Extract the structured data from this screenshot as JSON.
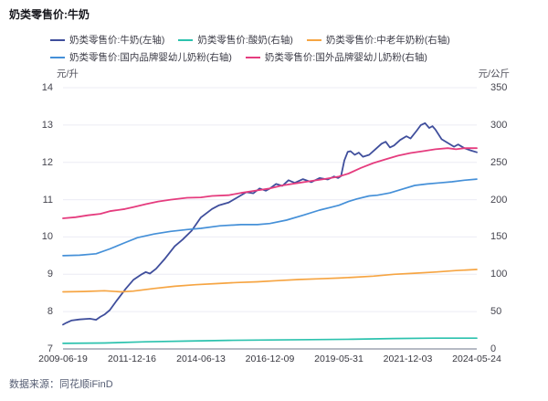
{
  "page": {
    "title": "奶类零售价:牛奶",
    "source_note": "数据来源：同花顺iFinD"
  },
  "chart_data": {
    "type": "line",
    "title": "奶类零售价:牛奶",
    "legend_position": "top",
    "grid": true,
    "x_range_note": "weekly series from 2009-06-19 to 2024-05-24, point x = normalized 0-1 position",
    "x_tick_labels": [
      "2009-06-19",
      "2011-12-16",
      "2014-06-13",
      "2016-12-09",
      "2019-05-31",
      "2021-12-03",
      "2024-05-24"
    ],
    "left_axis": {
      "unit": "元/升",
      "min": 7,
      "max": 14,
      "ticks": [
        14,
        13,
        12,
        11,
        10,
        9,
        8,
        7
      ]
    },
    "right_axis": {
      "unit": "元/公斤",
      "min": 0,
      "max": 350,
      "ticks": [
        350,
        300,
        250,
        200,
        150,
        100,
        50,
        0
      ]
    },
    "series": [
      {
        "name": "奶类零售价:牛奶(左轴)",
        "axis": "left",
        "color": "#3f4e9c",
        "width": 1.8,
        "points": [
          [
            0,
            7.65
          ],
          [
            0.008,
            7.7
          ],
          [
            0.02,
            7.76
          ],
          [
            0.04,
            7.79
          ],
          [
            0.065,
            7.81
          ],
          [
            0.08,
            7.78
          ],
          [
            0.09,
            7.86
          ],
          [
            0.1,
            7.92
          ],
          [
            0.113,
            8.04
          ],
          [
            0.13,
            8.3
          ],
          [
            0.152,
            8.62
          ],
          [
            0.17,
            8.85
          ],
          [
            0.19,
            9.0
          ],
          [
            0.2,
            9.06
          ],
          [
            0.21,
            9.02
          ],
          [
            0.225,
            9.15
          ],
          [
            0.245,
            9.4
          ],
          [
            0.27,
            9.75
          ],
          [
            0.289,
            9.93
          ],
          [
            0.311,
            10.17
          ],
          [
            0.333,
            10.52
          ],
          [
            0.36,
            10.75
          ],
          [
            0.377,
            10.85
          ],
          [
            0.4,
            10.92
          ],
          [
            0.42,
            11.05
          ],
          [
            0.443,
            11.2
          ],
          [
            0.46,
            11.17
          ],
          [
            0.475,
            11.3
          ],
          [
            0.49,
            11.24
          ],
          [
            0.5,
            11.3
          ],
          [
            0.515,
            11.42
          ],
          [
            0.53,
            11.37
          ],
          [
            0.545,
            11.52
          ],
          [
            0.56,
            11.45
          ],
          [
            0.58,
            11.55
          ],
          [
            0.6,
            11.47
          ],
          [
            0.62,
            11.58
          ],
          [
            0.64,
            11.54
          ],
          [
            0.655,
            11.62
          ],
          [
            0.665,
            11.58
          ],
          [
            0.672,
            11.63
          ],
          [
            0.68,
            12.05
          ],
          [
            0.688,
            12.28
          ],
          [
            0.695,
            12.3
          ],
          [
            0.705,
            12.2
          ],
          [
            0.715,
            12.26
          ],
          [
            0.725,
            12.15
          ],
          [
            0.74,
            12.2
          ],
          [
            0.755,
            12.35
          ],
          [
            0.77,
            12.5
          ],
          [
            0.78,
            12.55
          ],
          [
            0.79,
            12.4
          ],
          [
            0.8,
            12.45
          ],
          [
            0.815,
            12.6
          ],
          [
            0.83,
            12.7
          ],
          [
            0.84,
            12.64
          ],
          [
            0.855,
            12.85
          ],
          [
            0.865,
            13.0
          ],
          [
            0.875,
            13.05
          ],
          [
            0.885,
            12.92
          ],
          [
            0.893,
            12.97
          ],
          [
            0.9,
            12.88
          ],
          [
            0.915,
            12.62
          ],
          [
            0.93,
            12.52
          ],
          [
            0.945,
            12.42
          ],
          [
            0.955,
            12.48
          ],
          [
            0.97,
            12.38
          ],
          [
            0.985,
            12.32
          ],
          [
            1,
            12.27
          ]
        ]
      },
      {
        "name": "奶类零售价:酸奶(右轴)",
        "axis": "right",
        "color": "#2cc2ae",
        "width": 1.7,
        "points": [
          [
            0,
            7.5
          ],
          [
            0.1,
            8
          ],
          [
            0.2,
            9.5
          ],
          [
            0.3,
            10.5
          ],
          [
            0.4,
            11.5
          ],
          [
            0.5,
            12
          ],
          [
            0.6,
            12.5
          ],
          [
            0.7,
            13
          ],
          [
            0.8,
            14
          ],
          [
            0.9,
            14.5
          ],
          [
            1,
            14.5
          ]
        ]
      },
      {
        "name": "奶类零售价:中老年奶粉(右轴)",
        "axis": "right",
        "color": "#f6a543",
        "width": 1.7,
        "points": [
          [
            0,
            76.5
          ],
          [
            0.05,
            77
          ],
          [
            0.1,
            78
          ],
          [
            0.14,
            76.5
          ],
          [
            0.17,
            77.5
          ],
          [
            0.22,
            81
          ],
          [
            0.27,
            84
          ],
          [
            0.32,
            86
          ],
          [
            0.37,
            87.5
          ],
          [
            0.42,
            89
          ],
          [
            0.47,
            90
          ],
          [
            0.52,
            91.5
          ],
          [
            0.57,
            93
          ],
          [
            0.62,
            94
          ],
          [
            0.667,
            95
          ],
          [
            0.7,
            96
          ],
          [
            0.75,
            97.5
          ],
          [
            0.8,
            100
          ],
          [
            0.85,
            101.5
          ],
          [
            0.9,
            103
          ],
          [
            0.95,
            105
          ],
          [
            1,
            106.5
          ]
        ]
      },
      {
        "name": "奶类零售价:国内品牌婴幼儿奶粉(右轴)",
        "axis": "right",
        "color": "#4590d8",
        "width": 1.7,
        "points": [
          [
            0,
            125
          ],
          [
            0.04,
            125.5
          ],
          [
            0.08,
            127.5
          ],
          [
            0.113,
            134
          ],
          [
            0.15,
            142.5
          ],
          [
            0.18,
            149
          ],
          [
            0.22,
            154
          ],
          [
            0.26,
            157.5
          ],
          [
            0.3,
            160
          ],
          [
            0.333,
            161.5
          ],
          [
            0.38,
            165
          ],
          [
            0.43,
            166.5
          ],
          [
            0.47,
            166.5
          ],
          [
            0.5,
            168
          ],
          [
            0.54,
            172.5
          ],
          [
            0.58,
            179
          ],
          [
            0.62,
            186
          ],
          [
            0.65,
            190
          ],
          [
            0.667,
            192.5
          ],
          [
            0.69,
            197.5
          ],
          [
            0.71,
            201
          ],
          [
            0.74,
            205
          ],
          [
            0.76,
            206
          ],
          [
            0.79,
            209
          ],
          [
            0.82,
            214
          ],
          [
            0.85,
            219
          ],
          [
            0.88,
            221
          ],
          [
            0.91,
            222.5
          ],
          [
            0.94,
            224
          ],
          [
            0.97,
            226
          ],
          [
            1,
            227.5
          ]
        ]
      },
      {
        "name": "奶类零售价:国外品牌婴幼儿奶粉(右轴)",
        "axis": "right",
        "color": "#e53c7e",
        "width": 1.8,
        "points": [
          [
            0,
            175
          ],
          [
            0.03,
            176.5
          ],
          [
            0.06,
            179
          ],
          [
            0.09,
            181
          ],
          [
            0.113,
            184.5
          ],
          [
            0.15,
            187.5
          ],
          [
            0.17,
            190
          ],
          [
            0.2,
            194
          ],
          [
            0.23,
            197.5
          ],
          [
            0.26,
            200
          ],
          [
            0.3,
            202.5
          ],
          [
            0.333,
            203
          ],
          [
            0.36,
            205
          ],
          [
            0.4,
            206
          ],
          [
            0.43,
            209
          ],
          [
            0.47,
            212.5
          ],
          [
            0.5,
            215
          ],
          [
            0.53,
            219
          ],
          [
            0.57,
            222.5
          ],
          [
            0.6,
            225
          ],
          [
            0.63,
            227.5
          ],
          [
            0.667,
            231
          ],
          [
            0.69,
            235
          ],
          [
            0.72,
            242.5
          ],
          [
            0.75,
            249
          ],
          [
            0.78,
            254
          ],
          [
            0.81,
            259
          ],
          [
            0.84,
            262.5
          ],
          [
            0.87,
            265
          ],
          [
            0.9,
            267.5
          ],
          [
            0.93,
            269
          ],
          [
            0.95,
            267.5
          ],
          [
            0.97,
            269
          ],
          [
            1,
            269
          ]
        ]
      }
    ]
  }
}
